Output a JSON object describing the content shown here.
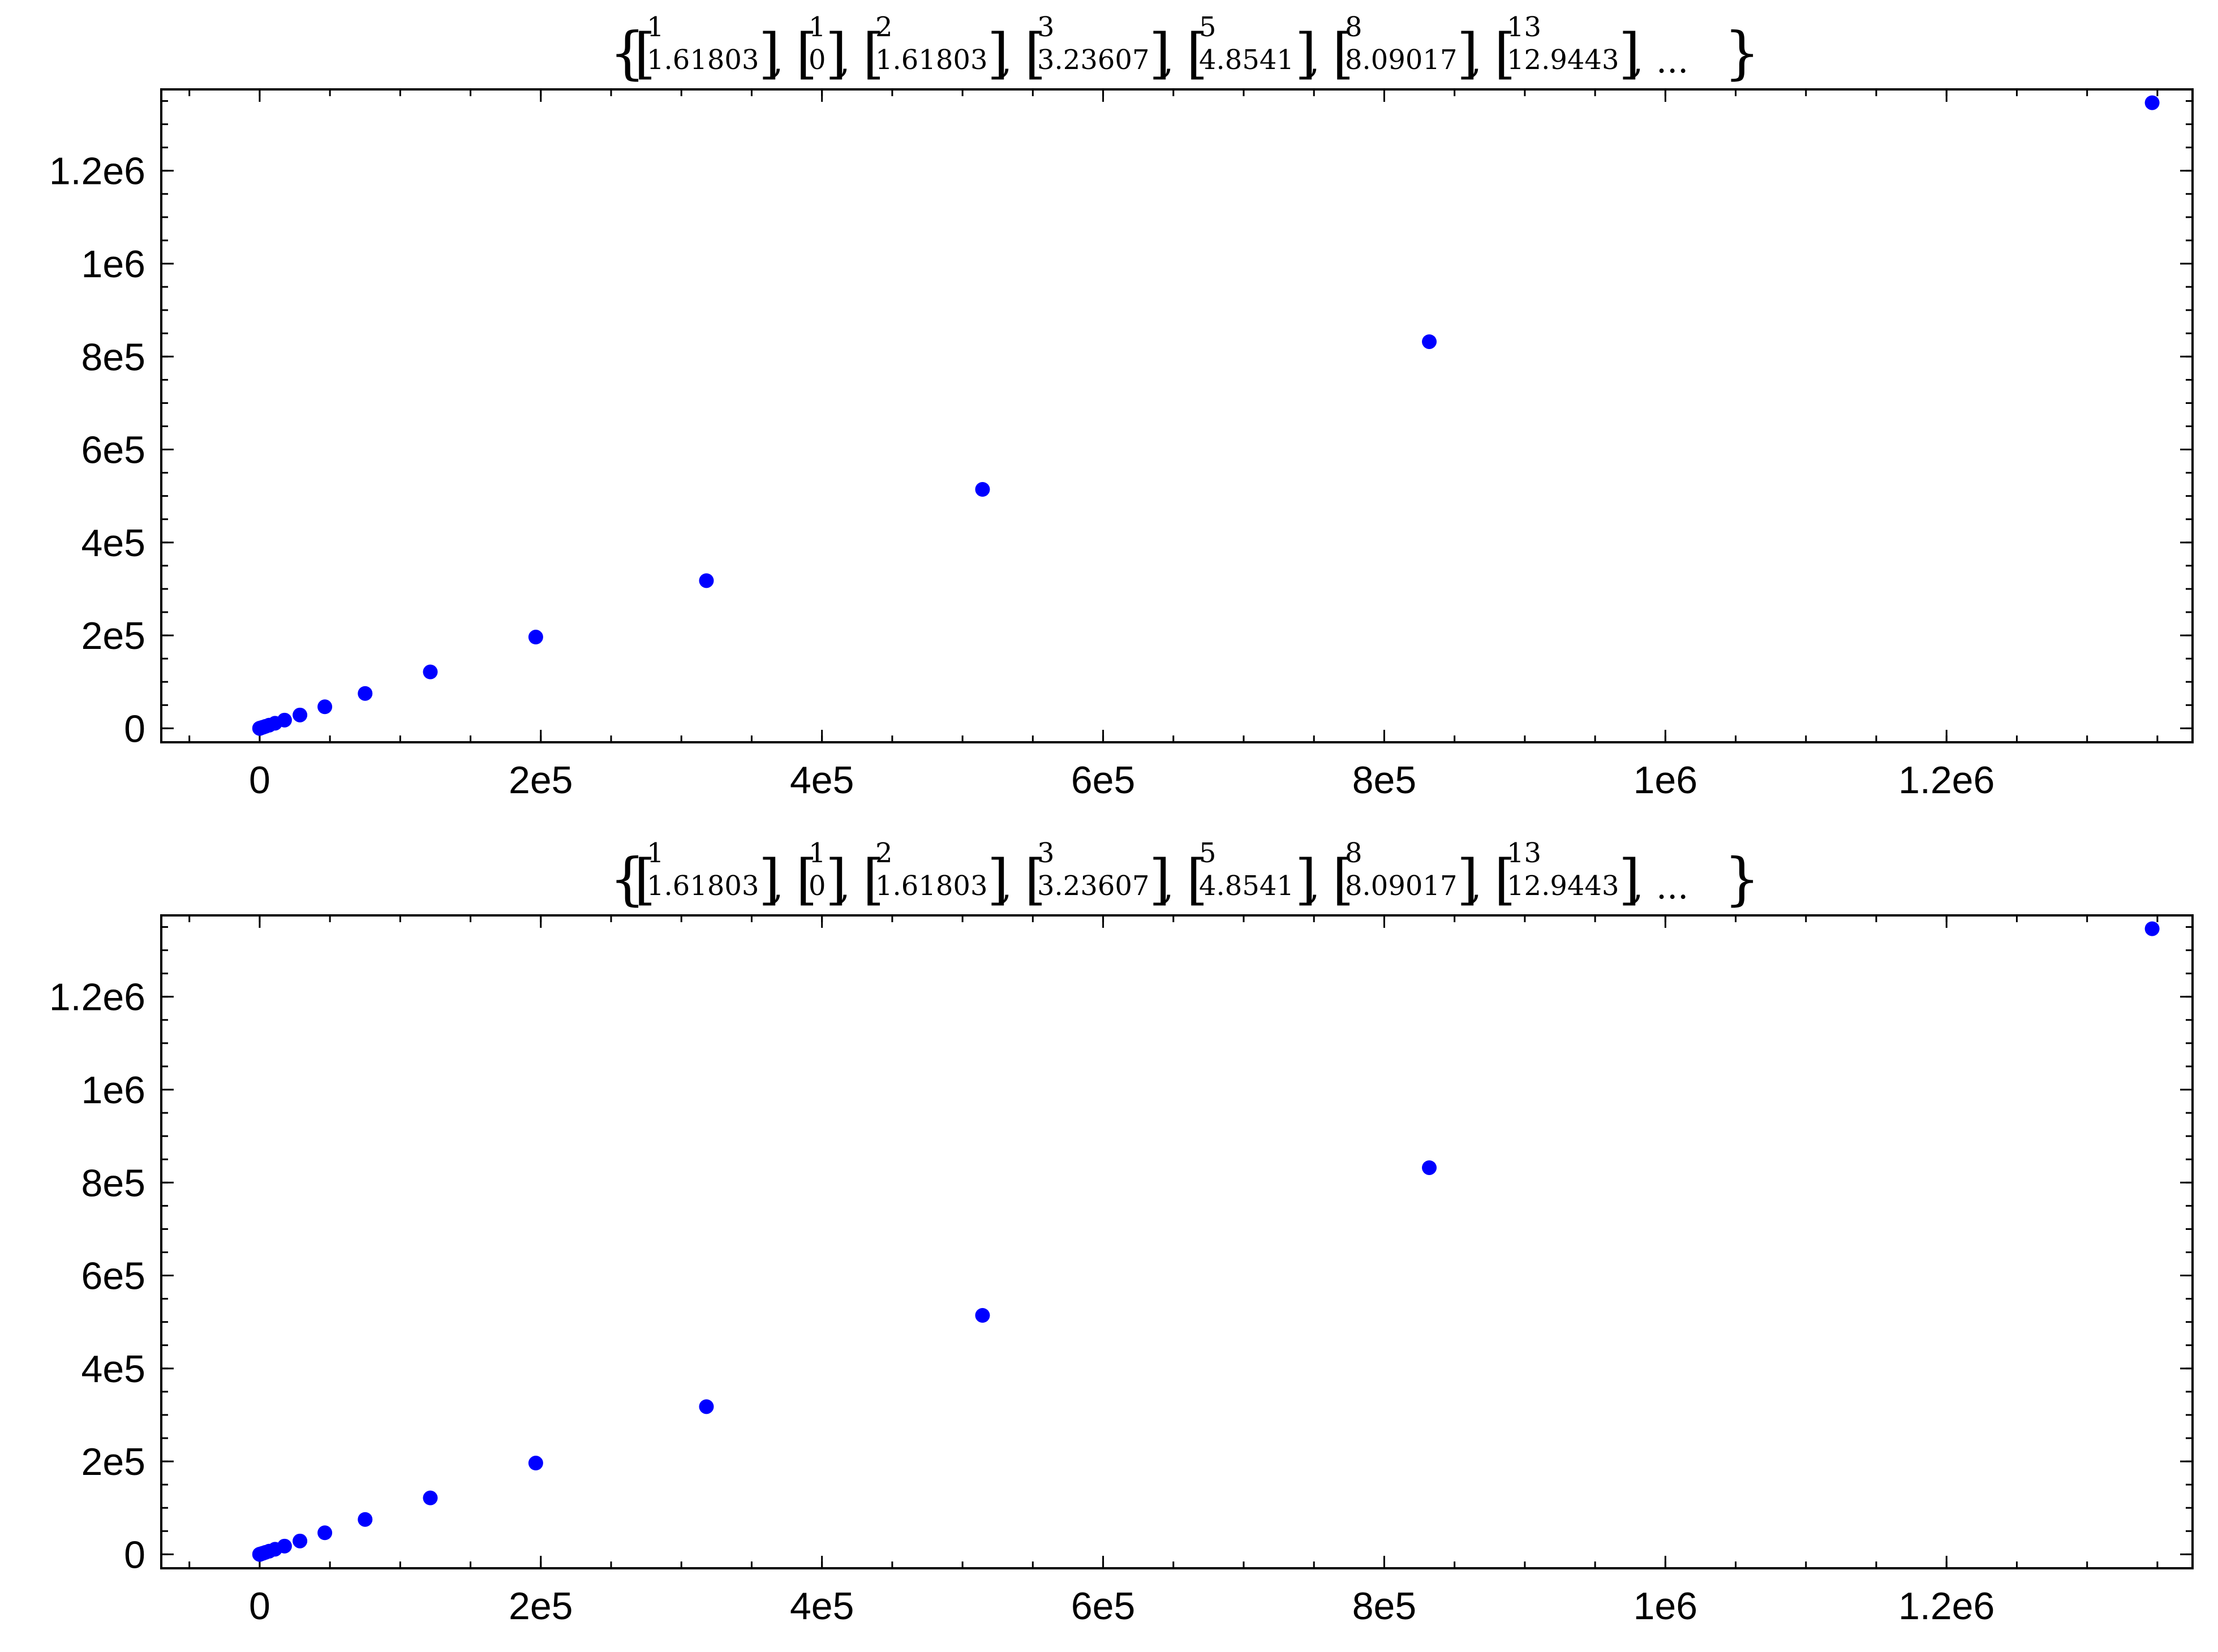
{
  "chart_data": [
    {
      "type": "scatter",
      "title_items": [
        {
          "top": "1",
          "bottom": "1.61803"
        },
        {
          "top": "1",
          "bottom": "0"
        },
        {
          "top": "2",
          "bottom": "1.61803"
        },
        {
          "top": "3",
          "bottom": "3.23607"
        },
        {
          "top": "5",
          "bottom": "4.8541"
        },
        {
          "top": "8",
          "bottom": "8.09017"
        },
        {
          "top": "13",
          "bottom": "12.9443"
        }
      ],
      "title_ellipsis": "...",
      "xlim": [
        -70000,
        1375000
      ],
      "ylim": [
        -30000,
        1375000
      ],
      "xticks": [
        {
          "v": 0,
          "label": "0"
        },
        {
          "v": 200000,
          "label": "2e5"
        },
        {
          "v": 400000,
          "label": "4e5"
        },
        {
          "v": 600000,
          "label": "6e5"
        },
        {
          "v": 800000,
          "label": "8e5"
        },
        {
          "v": 1000000,
          "label": "1e6"
        },
        {
          "v": 1200000,
          "label": "1.2e6"
        }
      ],
      "yticks": [
        {
          "v": 0,
          "label": "0"
        },
        {
          "v": 200000,
          "label": "2e5"
        },
        {
          "v": 400000,
          "label": "4e5"
        },
        {
          "v": 600000,
          "label": "6e5"
        },
        {
          "v": 800000,
          "label": "8e5"
        },
        {
          "v": 1000000,
          "label": "1e6"
        },
        {
          "v": 1200000,
          "label": "1.2e6"
        }
      ],
      "x_minor_step": 50000,
      "y_minor_step": 50000,
      "grid": false,
      "marker_color": "#0000ff",
      "points": [
        [
          1,
          0
        ],
        [
          2,
          2
        ],
        [
          3,
          3
        ],
        [
          5,
          5
        ],
        [
          8,
          8
        ],
        [
          13,
          13
        ],
        [
          21,
          21
        ],
        [
          34,
          34
        ],
        [
          55,
          55
        ],
        [
          89,
          89
        ],
        [
          144,
          144
        ],
        [
          233,
          233
        ],
        [
          377,
          377
        ],
        [
          610,
          610
        ],
        [
          987,
          987
        ],
        [
          1597,
          1597
        ],
        [
          2584,
          2584
        ],
        [
          4181,
          4181
        ],
        [
          6765,
          6765
        ],
        [
          10946,
          10946
        ],
        [
          17711,
          17711
        ],
        [
          28657,
          28657
        ],
        [
          46368,
          46368
        ],
        [
          75025,
          75025
        ],
        [
          121393,
          121393
        ],
        [
          196418,
          196418
        ],
        [
          317811,
          317811
        ],
        [
          514229,
          514229
        ],
        [
          832040,
          832040
        ],
        [
          1346269,
          1346269
        ]
      ]
    },
    {
      "type": "scatter",
      "title_items": [
        {
          "top": "1",
          "bottom": "1.61803"
        },
        {
          "top": "1",
          "bottom": "0"
        },
        {
          "top": "2",
          "bottom": "1.61803"
        },
        {
          "top": "3",
          "bottom": "3.23607"
        },
        {
          "top": "5",
          "bottom": "4.8541"
        },
        {
          "top": "8",
          "bottom": "8.09017"
        },
        {
          "top": "13",
          "bottom": "12.9443"
        }
      ],
      "title_ellipsis": "...",
      "xlim": [
        -70000,
        1375000
      ],
      "ylim": [
        -30000,
        1375000
      ],
      "xticks": [
        {
          "v": 0,
          "label": "0"
        },
        {
          "v": 200000,
          "label": "2e5"
        },
        {
          "v": 400000,
          "label": "4e5"
        },
        {
          "v": 600000,
          "label": "6e5"
        },
        {
          "v": 800000,
          "label": "8e5"
        },
        {
          "v": 1000000,
          "label": "1e6"
        },
        {
          "v": 1200000,
          "label": "1.2e6"
        }
      ],
      "yticks": [
        {
          "v": 0,
          "label": "0"
        },
        {
          "v": 200000,
          "label": "2e5"
        },
        {
          "v": 400000,
          "label": "4e5"
        },
        {
          "v": 600000,
          "label": "6e5"
        },
        {
          "v": 800000,
          "label": "8e5"
        },
        {
          "v": 1000000,
          "label": "1e6"
        },
        {
          "v": 1200000,
          "label": "1.2e6"
        }
      ],
      "x_minor_step": 50000,
      "y_minor_step": 50000,
      "grid": false,
      "marker_color": "#0000ff",
      "points": [
        [
          1,
          0
        ],
        [
          2,
          2
        ],
        [
          3,
          3
        ],
        [
          5,
          5
        ],
        [
          8,
          8
        ],
        [
          13,
          13
        ],
        [
          21,
          21
        ],
        [
          34,
          34
        ],
        [
          55,
          55
        ],
        [
          89,
          89
        ],
        [
          144,
          144
        ],
        [
          233,
          233
        ],
        [
          377,
          377
        ],
        [
          610,
          610
        ],
        [
          987,
          987
        ],
        [
          1597,
          1597
        ],
        [
          2584,
          2584
        ],
        [
          4181,
          4181
        ],
        [
          6765,
          6765
        ],
        [
          10946,
          10946
        ],
        [
          17711,
          17711
        ],
        [
          28657,
          28657
        ],
        [
          46368,
          46368
        ],
        [
          75025,
          75025
        ],
        [
          121393,
          121393
        ],
        [
          196418,
          196418
        ],
        [
          317811,
          317811
        ],
        [
          514229,
          514229
        ],
        [
          832040,
          832040
        ],
        [
          1346269,
          1346269
        ]
      ]
    }
  ]
}
